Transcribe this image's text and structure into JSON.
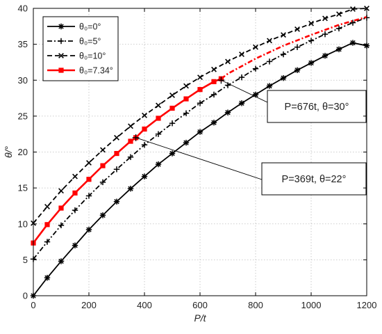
{
  "chart_data": {
    "type": "line",
    "xlabel": "P/t",
    "ylabel": "θ/°",
    "xlim": [
      0,
      1200
    ],
    "ylim": [
      0,
      40
    ],
    "xticks": [
      0,
      200,
      400,
      600,
      800,
      1000,
      1200
    ],
    "yticks": [
      0,
      5,
      10,
      15,
      20,
      25,
      30,
      35,
      40
    ],
    "grid": true,
    "legend_position": "top-left",
    "series": [
      {
        "name": "θ0=0°",
        "legend_label": "θ₀=0°",
        "color": "#000000",
        "dash": "solid",
        "marker": "asterisk",
        "x": [
          0,
          50,
          100,
          150,
          200,
          250,
          300,
          350,
          400,
          450,
          500,
          550,
          600,
          650,
          700,
          750,
          800,
          850,
          900,
          950,
          1000,
          1050,
          1100,
          1150,
          1200
        ],
        "y": [
          0,
          2.5,
          4.8,
          7.0,
          9.2,
          11.2,
          13.1,
          14.9,
          16.6,
          18.3,
          19.8,
          21.3,
          22.8,
          24.1,
          25.5,
          26.8,
          28.0,
          29.2,
          30.3,
          31.4,
          32.4,
          33.4,
          34.3,
          35.2,
          34.8
        ]
      },
      {
        "name": "θ0=5°",
        "legend_label": "θ₀=5°",
        "color": "#000000",
        "dash": "dashdot",
        "marker": "plus",
        "x": [
          0,
          50,
          100,
          150,
          200,
          250,
          300,
          350,
          400,
          450,
          500,
          550,
          600,
          650,
          700,
          750,
          800,
          850,
          900,
          950,
          1000,
          1050,
          1100,
          1150,
          1200
        ],
        "y": [
          5.1,
          7.5,
          9.8,
          11.9,
          13.9,
          15.8,
          17.6,
          19.3,
          21.0,
          22.5,
          24.0,
          25.4,
          26.8,
          28.0,
          29.3,
          30.4,
          31.6,
          32.6,
          33.6,
          34.6,
          35.5,
          36.4,
          37.2,
          38.0,
          38.7
        ]
      },
      {
        "name": "θ0=10°",
        "legend_label": "θ₀=10°",
        "color": "#000000",
        "dash": "dashed",
        "marker": "x",
        "x": [
          0,
          50,
          100,
          150,
          200,
          250,
          300,
          350,
          400,
          450,
          500,
          550,
          600,
          650,
          700,
          750,
          800,
          850,
          900,
          950,
          1000,
          1050,
          1100,
          1150,
          1200
        ],
        "y": [
          10.1,
          12.4,
          14.6,
          16.6,
          18.5,
          20.3,
          22.0,
          23.6,
          25.1,
          26.5,
          27.9,
          29.2,
          30.4,
          31.5,
          32.6,
          33.6,
          34.6,
          35.5,
          36.3,
          37.1,
          37.9,
          38.6,
          39.2,
          39.9,
          40.0
        ]
      },
      {
        "name": "θ0=7.34°",
        "legend_label": "θ₀=7.34°",
        "color": "#ff0000",
        "dash": "solid",
        "marker": "square",
        "x": [
          0,
          50,
          100,
          150,
          200,
          250,
          300,
          350,
          369,
          400,
          450,
          500,
          550,
          600,
          650,
          676
        ],
        "y": [
          7.34,
          9.9,
          12.2,
          14.3,
          16.2,
          18.1,
          19.8,
          21.5,
          22.0,
          23.2,
          24.7,
          26.1,
          27.4,
          28.7,
          29.8,
          30.2
        ]
      },
      {
        "name": "θ0=7.34° extension",
        "color": "#ff0000",
        "dash": "dashdot",
        "marker": "none",
        "x": [
          676,
          700,
          800,
          900,
          1000,
          1100,
          1200
        ],
        "y": [
          30.2,
          30.9,
          33.0,
          34.8,
          36.3,
          37.7,
          38.8
        ]
      }
    ],
    "annotations": [
      {
        "text": "P=676t, θ=30°",
        "x": 676,
        "y": 30
      },
      {
        "text": "P=369t, θ=22°",
        "x": 369,
        "y": 22
      }
    ]
  }
}
